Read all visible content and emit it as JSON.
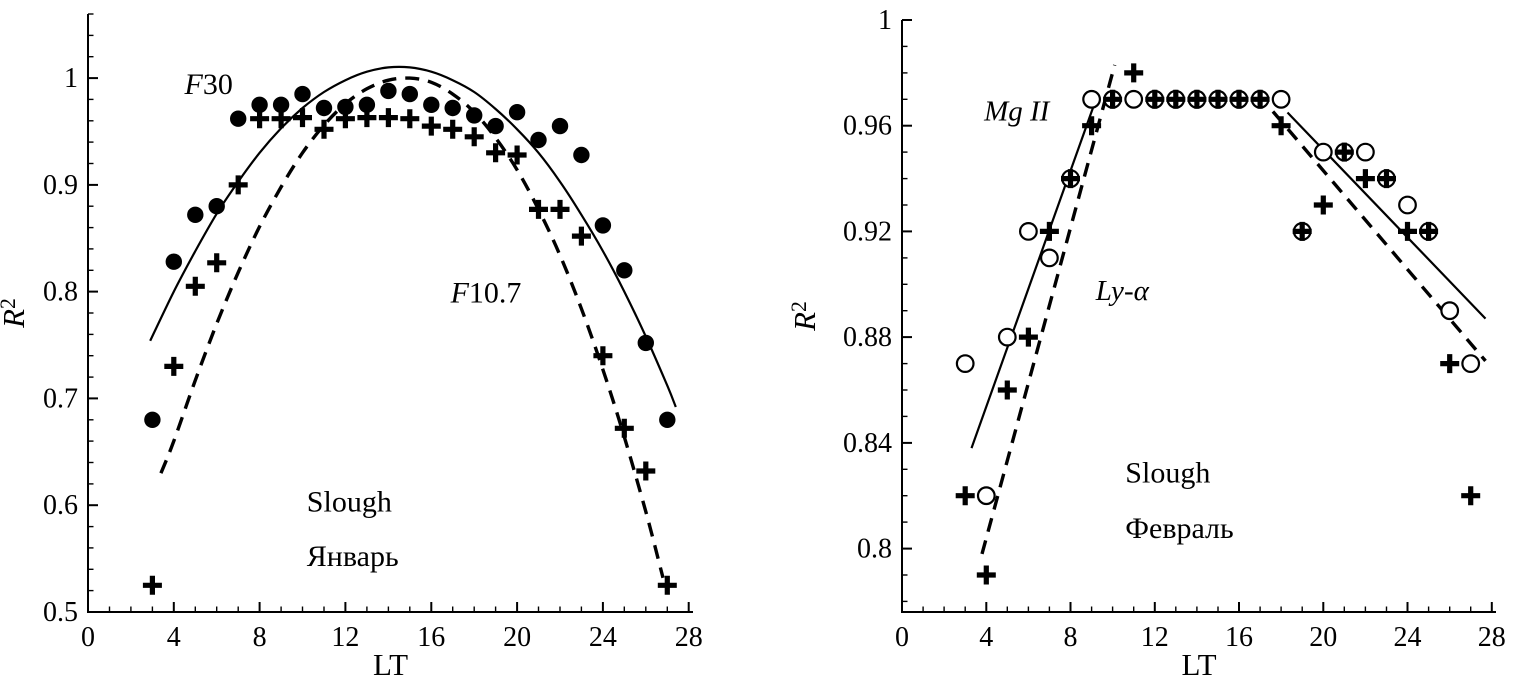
{
  "figure": {
    "background": "#ffffff",
    "ink": "#000000",
    "panel_count": 2
  },
  "chart_data": [
    {
      "type": "scatter",
      "panel": "left",
      "station_label": "Slough",
      "month_label": "Январь",
      "xlabel": "LT",
      "ylabel": "R²",
      "ylabel_runs": [
        {
          "text": "R",
          "italic": true
        },
        {
          "text": "2",
          "sup": true
        }
      ],
      "xlim": [
        0,
        28.2
      ],
      "ylim": [
        0.5,
        1.06
      ],
      "xticks": [
        0,
        4,
        8,
        12,
        16,
        20,
        24,
        28
      ],
      "xtick_labels": [
        "0",
        "4",
        "8",
        "12",
        "16",
        "20",
        "24",
        "28"
      ],
      "yticks": [
        0.5,
        0.6,
        0.7,
        0.8,
        0.9,
        1
      ],
      "ytick_labels": [
        "0.5",
        "0.6",
        "0.7",
        "0.8",
        "0.9",
        "1"
      ],
      "x_minor_step": 1,
      "y_minor_step": 0.02,
      "grid": false,
      "legend": "in-plot text annotations",
      "annotations": [
        {
          "name": "label-f30",
          "runs": [
            {
              "text": "F",
              "italic": true
            },
            {
              "text": "30"
            }
          ],
          "x": 4.5,
          "y": 0.985,
          "size": 30
        },
        {
          "name": "label-f107",
          "runs": [
            {
              "text": "F",
              "italic": true
            },
            {
              "text": "10.7"
            }
          ],
          "x": 16.9,
          "y": 0.79,
          "size": 30
        },
        {
          "name": "label-station",
          "runs": [
            {
              "text": "Slough"
            }
          ],
          "x": 10.2,
          "y": 0.594,
          "size": 30
        },
        {
          "name": "label-month",
          "runs": [
            {
              "text": "Январь"
            }
          ],
          "x": 10.2,
          "y": 0.543,
          "size": 30
        }
      ],
      "series": [
        {
          "name": "F30 fit",
          "type": "line",
          "style": "solid",
          "smooth": true,
          "width": 2.2,
          "segments": [
            [
              [
                2.9,
                0.754
              ],
              [
                4,
                0.8
              ],
              [
                5,
                0.838
              ],
              [
                6,
                0.873
              ],
              [
                7,
                0.903
              ],
              [
                8,
                0.93
              ],
              [
                9,
                0.953
              ],
              [
                10,
                0.972
              ],
              [
                11,
                0.987
              ],
              [
                12,
                0.998
              ],
              [
                13,
                1.006
              ],
              [
                14,
                1.01
              ],
              [
                15,
                1.01
              ],
              [
                16,
                1.006
              ],
              [
                17,
                0.998
              ],
              [
                18,
                0.987
              ],
              [
                19,
                0.971
              ],
              [
                20,
                0.952
              ],
              [
                21,
                0.93
              ],
              [
                22,
                0.903
              ],
              [
                23,
                0.872
              ],
              [
                24,
                0.838
              ],
              [
                25,
                0.8
              ],
              [
                26,
                0.758
              ],
              [
                27,
                0.712
              ],
              [
                27.4,
                0.692
              ]
            ]
          ]
        },
        {
          "name": "F10.7 fit",
          "type": "line",
          "style": "dashed",
          "smooth": true,
          "width": 3.4,
          "segments": [
            [
              [
                3.4,
                0.63
              ],
              [
                4,
                0.66
              ],
              [
                5,
                0.717
              ],
              [
                6,
                0.77
              ],
              [
                7,
                0.818
              ],
              [
                8,
                0.861
              ],
              [
                9,
                0.898
              ],
              [
                10,
                0.93
              ],
              [
                11,
                0.956
              ],
              [
                12,
                0.976
              ],
              [
                13,
                0.99
              ],
              [
                14,
                0.998
              ],
              [
                15,
                1.0
              ],
              [
                16,
                0.996
              ],
              [
                17,
                0.985
              ],
              [
                18,
                0.968
              ],
              [
                19,
                0.944
              ],
              [
                20,
                0.914
              ],
              [
                21,
                0.877
              ],
              [
                22,
                0.834
              ],
              [
                23,
                0.784
              ],
              [
                24,
                0.727
              ],
              [
                25,
                0.664
              ],
              [
                26,
                0.594
              ],
              [
                26.8,
                0.532
              ]
            ]
          ]
        },
        {
          "name": "F10.7",
          "type": "scatter",
          "marker": "plus",
          "points": [
            [
              3,
              0.525
            ],
            [
              4,
              0.73
            ],
            [
              5,
              0.805
            ],
            [
              6,
              0.827
            ],
            [
              7,
              0.9
            ],
            [
              8,
              0.962
            ],
            [
              9,
              0.962
            ],
            [
              10,
              0.963
            ],
            [
              11,
              0.952
            ],
            [
              12,
              0.962
            ],
            [
              13,
              0.963
            ],
            [
              14,
              0.963
            ],
            [
              15,
              0.962
            ],
            [
              16,
              0.955
            ],
            [
              17,
              0.952
            ],
            [
              18,
              0.945
            ],
            [
              19,
              0.93
            ],
            [
              20,
              0.928
            ],
            [
              21,
              0.877
            ],
            [
              22,
              0.877
            ],
            [
              23,
              0.852
            ],
            [
              24,
              0.74
            ],
            [
              25,
              0.672
            ],
            [
              26,
              0.632
            ],
            [
              27,
              0.525
            ]
          ]
        },
        {
          "name": "F30",
          "type": "scatter",
          "marker": "filled-circle",
          "points": [
            [
              3,
              0.68
            ],
            [
              4,
              0.828
            ],
            [
              5,
              0.872
            ],
            [
              6,
              0.88
            ],
            [
              7,
              0.962
            ],
            [
              8,
              0.975
            ],
            [
              9,
              0.975
            ],
            [
              10,
              0.985
            ],
            [
              11,
              0.972
            ],
            [
              12,
              0.973
            ],
            [
              13,
              0.975
            ],
            [
              14,
              0.988
            ],
            [
              15,
              0.985
            ],
            [
              16,
              0.975
            ],
            [
              17,
              0.972
            ],
            [
              18,
              0.965
            ],
            [
              19,
              0.955
            ],
            [
              20,
              0.968
            ],
            [
              21,
              0.942
            ],
            [
              22,
              0.955
            ],
            [
              23,
              0.928
            ],
            [
              24,
              0.862
            ],
            [
              25,
              0.82
            ],
            [
              26,
              0.752
            ],
            [
              27,
              0.68
            ]
          ]
        }
      ]
    },
    {
      "type": "scatter",
      "panel": "right",
      "station_label": "Slough",
      "month_label": "Февраль",
      "xlabel": "LT",
      "ylabel": "R²",
      "ylabel_runs": [
        {
          "text": "R",
          "italic": true
        },
        {
          "text": "2",
          "sup": true
        }
      ],
      "xlim": [
        0,
        28.2
      ],
      "ylim": [
        0.776,
        1.0
      ],
      "xticks": [
        0,
        4,
        8,
        12,
        16,
        20,
        24,
        28
      ],
      "xtick_labels": [
        "0",
        "4",
        "8",
        "12",
        "16",
        "20",
        "24",
        "28"
      ],
      "yticks": [
        0.8,
        0.84,
        0.88,
        0.92,
        0.96,
        1
      ],
      "ytick_labels": [
        "0.8",
        "0.84",
        "0.88",
        "0.92",
        "0.96",
        "1"
      ],
      "x_minor_step": 1,
      "y_minor_step": 0.01,
      "grid": false,
      "legend": "in-plot text annotations",
      "annotations": [
        {
          "name": "label-mgii",
          "runs": [
            {
              "text": "Mg II",
              "italic": true
            }
          ],
          "x": 3.9,
          "y": 0.962,
          "size": 29
        },
        {
          "name": "label-lya",
          "runs": [
            {
              "text": "Ly",
              "italic": true
            },
            {
              "text": "-α",
              "italic": true
            }
          ],
          "x": 9.2,
          "y": 0.894,
          "size": 29
        },
        {
          "name": "label-station",
          "runs": [
            {
              "text": "Slough"
            }
          ],
          "x": 10.6,
          "y": 0.825,
          "size": 30
        },
        {
          "name": "label-month",
          "runs": [
            {
              "text": "Февраль"
            }
          ],
          "x": 10.6,
          "y": 0.804,
          "size": 30
        }
      ],
      "series": [
        {
          "name": "Mg II fit",
          "type": "line",
          "style": "solid",
          "smooth": false,
          "width": 2.2,
          "segments": [
            [
              [
                3.3,
                0.838
              ],
              [
                9.3,
                0.972
              ]
            ],
            [
              [
                18.3,
                0.965
              ],
              [
                27.7,
                0.887
              ]
            ]
          ]
        },
        {
          "name": "Ly-α fit",
          "type": "line",
          "style": "dashed",
          "smooth": false,
          "width": 3.4,
          "segments": [
            [
              [
                3.8,
                0.798
              ],
              [
                10.1,
                0.983
              ]
            ],
            [
              [
                16.9,
                0.972
              ],
              [
                27.7,
                0.871
              ]
            ]
          ]
        },
        {
          "name": "Mg II",
          "type": "scatter",
          "marker": "open-circle",
          "points": [
            [
              3,
              0.87
            ],
            [
              4,
              0.82
            ],
            [
              5,
              0.88
            ],
            [
              6,
              0.92
            ],
            [
              7,
              0.91
            ],
            [
              8,
              0.94
            ],
            [
              9,
              0.97
            ],
            [
              10,
              0.97
            ],
            [
              11,
              0.97
            ],
            [
              12,
              0.97
            ],
            [
              13,
              0.97
            ],
            [
              14,
              0.97
            ],
            [
              15,
              0.97
            ],
            [
              16,
              0.97
            ],
            [
              17,
              0.97
            ],
            [
              18,
              0.97
            ],
            [
              19,
              0.92
            ],
            [
              20,
              0.95
            ],
            [
              21,
              0.95
            ],
            [
              22,
              0.95
            ],
            [
              23,
              0.94
            ],
            [
              24,
              0.93
            ],
            [
              25,
              0.92
            ],
            [
              26,
              0.89
            ],
            [
              27,
              0.87
            ]
          ]
        },
        {
          "name": "Ly-α",
          "type": "scatter",
          "marker": "plus",
          "points": [
            [
              3,
              0.82
            ],
            [
              4,
              0.79
            ],
            [
              5,
              0.86
            ],
            [
              6,
              0.88
            ],
            [
              7,
              0.92
            ],
            [
              8,
              0.94
            ],
            [
              9,
              0.96
            ],
            [
              10,
              0.97
            ],
            [
              11,
              0.98
            ],
            [
              12,
              0.97
            ],
            [
              13,
              0.97
            ],
            [
              14,
              0.97
            ],
            [
              15,
              0.97
            ],
            [
              16,
              0.97
            ],
            [
              17,
              0.97
            ],
            [
              18,
              0.96
            ],
            [
              19,
              0.92
            ],
            [
              20,
              0.93
            ],
            [
              21,
              0.95
            ],
            [
              22,
              0.94
            ],
            [
              23,
              0.94
            ],
            [
              24,
              0.92
            ],
            [
              25,
              0.92
            ],
            [
              26,
              0.87
            ],
            [
              27,
              0.82
            ]
          ]
        }
      ]
    }
  ]
}
